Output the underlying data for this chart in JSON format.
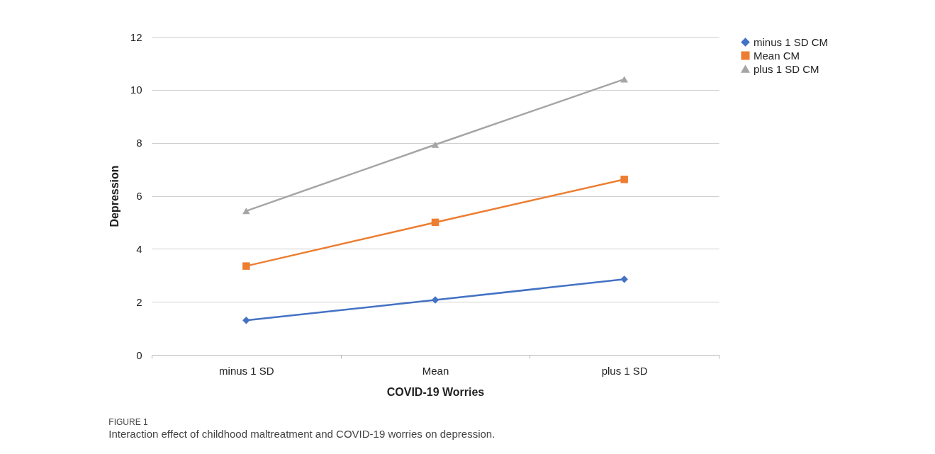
{
  "chart_data": {
    "type": "line",
    "xlabel": "COVID-19 Worries",
    "ylabel": "Depression",
    "categories": [
      "minus 1 SD",
      "Mean",
      "plus 1 SD"
    ],
    "series": [
      {
        "name": "minus 1 SD CM",
        "color": "#4472c4",
        "marker": "diamond",
        "values": [
          1.3,
          2.07,
          2.85
        ]
      },
      {
        "name": "Mean CM",
        "color": "#ed7d31",
        "marker": "square",
        "values": [
          3.35,
          5.0,
          6.62
        ]
      },
      {
        "name": "plus 1 SD CM",
        "color": "#a5a5a5",
        "marker": "triangle",
        "values": [
          5.43,
          7.93,
          10.4
        ]
      }
    ],
    "ylim": [
      0,
      12
    ],
    "yticks": [
      0,
      2,
      4,
      6,
      8,
      10,
      12
    ],
    "grid": "y",
    "legend": "right",
    "line_style": "solid",
    "annotations": [
      "FIGURE 1",
      "Interaction effect of childhood maltreatment and COVID-19 worries on depression."
    ]
  }
}
